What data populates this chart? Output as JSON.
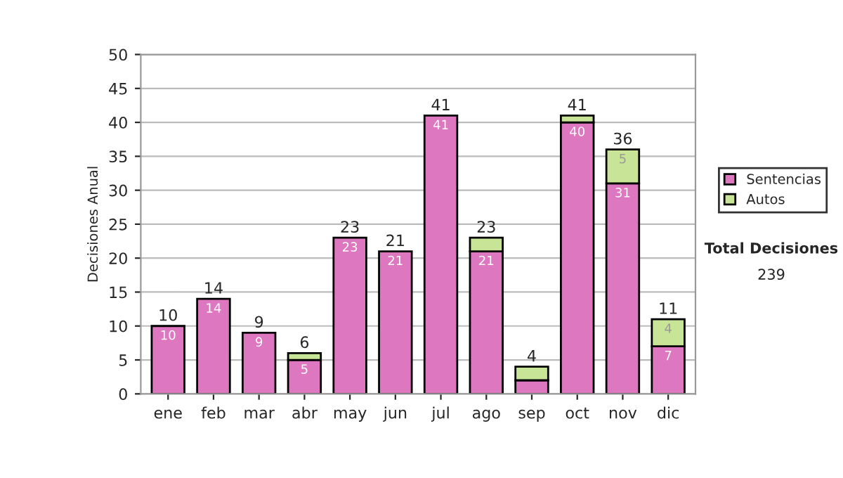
{
  "chart_data": {
    "type": "bar",
    "stacked": true,
    "ylabel": "Decisiones Anual",
    "categories": [
      "ene",
      "feb",
      "mar",
      "abr",
      "may",
      "jun",
      "jul",
      "ago",
      "sep",
      "oct",
      "nov",
      "dic"
    ],
    "series": [
      {
        "name": "Sentencias",
        "color": "#dd77c0",
        "values": [
          10,
          14,
          9,
          5,
          23,
          21,
          41,
          21,
          2,
          40,
          31,
          7
        ],
        "value_labels": [
          "10",
          "14",
          "9",
          "5",
          "23",
          "21",
          "41",
          "21",
          null,
          "40",
          "31",
          "7"
        ]
      },
      {
        "name": "Autos",
        "color": "#c8e496",
        "values": [
          null,
          null,
          null,
          1,
          null,
          null,
          null,
          2,
          2,
          1,
          5,
          4
        ],
        "value_labels": [
          null,
          null,
          null,
          null,
          null,
          null,
          null,
          null,
          null,
          null,
          "5",
          "4"
        ]
      }
    ],
    "totals": [
      "10",
      "14",
      "9",
      "6",
      "23",
      "21",
      "41",
      "23",
      "4",
      "41",
      "36",
      "11"
    ],
    "ylim": [
      0,
      50
    ],
    "yticks": [
      0,
      5,
      10,
      15,
      20,
      25,
      30,
      35,
      40,
      45,
      50
    ],
    "grid": "y",
    "legend": "right",
    "annotations": [
      "Total Decisiones",
      "239"
    ]
  }
}
